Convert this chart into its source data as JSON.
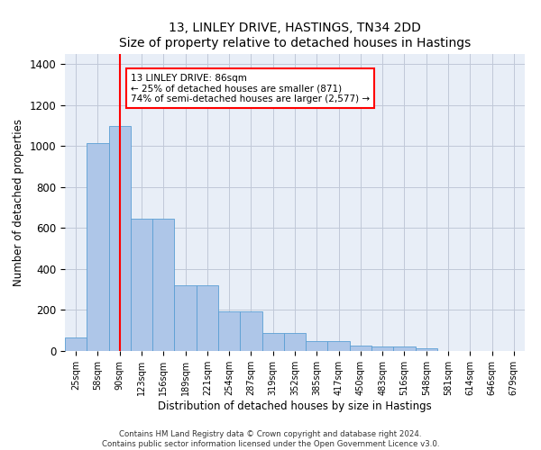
{
  "title": "13, LINLEY DRIVE, HASTINGS, TN34 2DD",
  "subtitle": "Size of property relative to detached houses in Hastings",
  "xlabel": "Distribution of detached houses by size in Hastings",
  "ylabel": "Number of detached properties",
  "categories": [
    "25sqm",
    "58sqm",
    "90sqm",
    "123sqm",
    "156sqm",
    "189sqm",
    "221sqm",
    "254sqm",
    "287sqm",
    "319sqm",
    "352sqm",
    "385sqm",
    "417sqm",
    "450sqm",
    "483sqm",
    "516sqm",
    "548sqm",
    "581sqm",
    "614sqm",
    "646sqm",
    "679sqm"
  ],
  "values": [
    65,
    1015,
    1100,
    645,
    645,
    320,
    320,
    195,
    195,
    90,
    90,
    48,
    48,
    25,
    22,
    22,
    15,
    0,
    0,
    0,
    0
  ],
  "bar_color": "#aec6e8",
  "bar_edge_color": "#5a9fd4",
  "bg_color": "#e8eef7",
  "grid_color": "#c0c8d8",
  "vline_x": 2,
  "vline_color": "red",
  "annotation_text": "13 LINLEY DRIVE: 86sqm\n← 25% of detached houses are smaller (871)\n74% of semi-detached houses are larger (2,577) →",
  "annotation_box_color": "white",
  "annotation_box_edge": "red",
  "footer": "Contains HM Land Registry data © Crown copyright and database right 2024.\nContains public sector information licensed under the Open Government Licence v3.0.",
  "ylim": [
    0,
    1450
  ],
  "yticks": [
    0,
    200,
    400,
    600,
    800,
    1000,
    1200,
    1400
  ]
}
